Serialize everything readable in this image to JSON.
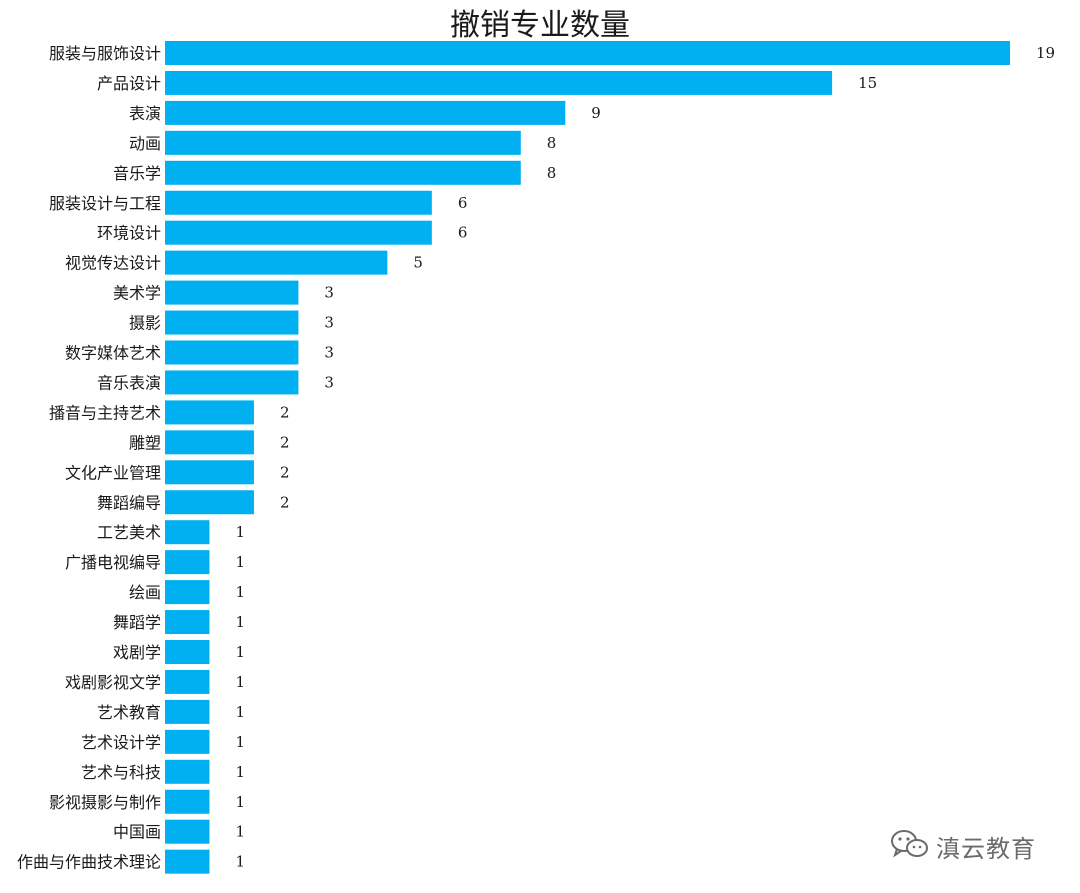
{
  "chart_data": {
    "type": "bar",
    "orientation": "horizontal",
    "title": "撤销专业数量",
    "xlabel": "",
    "ylabel": "",
    "xlim": [
      0,
      19
    ],
    "grid": false,
    "legend": "none",
    "bar_color": "#00B0F0",
    "categories": [
      "服装与服饰设计",
      "产品设计",
      "表演",
      "动画",
      "音乐学",
      "服装设计与工程",
      "环境设计",
      "视觉传达设计",
      "美术学",
      "摄影",
      "数字媒体艺术",
      "音乐表演",
      "播音与主持艺术",
      "雕塑",
      "文化产业管理",
      "舞蹈编导",
      "工艺美术",
      "广播电视编导",
      "绘画",
      "舞蹈学",
      "戏剧学",
      "戏剧影视文学",
      "艺术教育",
      "艺术设计学",
      "艺术与科技",
      "影视摄影与制作",
      "中国画",
      "作曲与作曲技术理论"
    ],
    "values": [
      19,
      15,
      9,
      8,
      8,
      6,
      6,
      5,
      3,
      3,
      3,
      3,
      2,
      2,
      2,
      2,
      1,
      1,
      1,
      1,
      1,
      1,
      1,
      1,
      1,
      1,
      1,
      1
    ]
  },
  "watermark": {
    "text": "滇云教育",
    "icon": "wechat-icon",
    "color": "#6b6b6b"
  }
}
